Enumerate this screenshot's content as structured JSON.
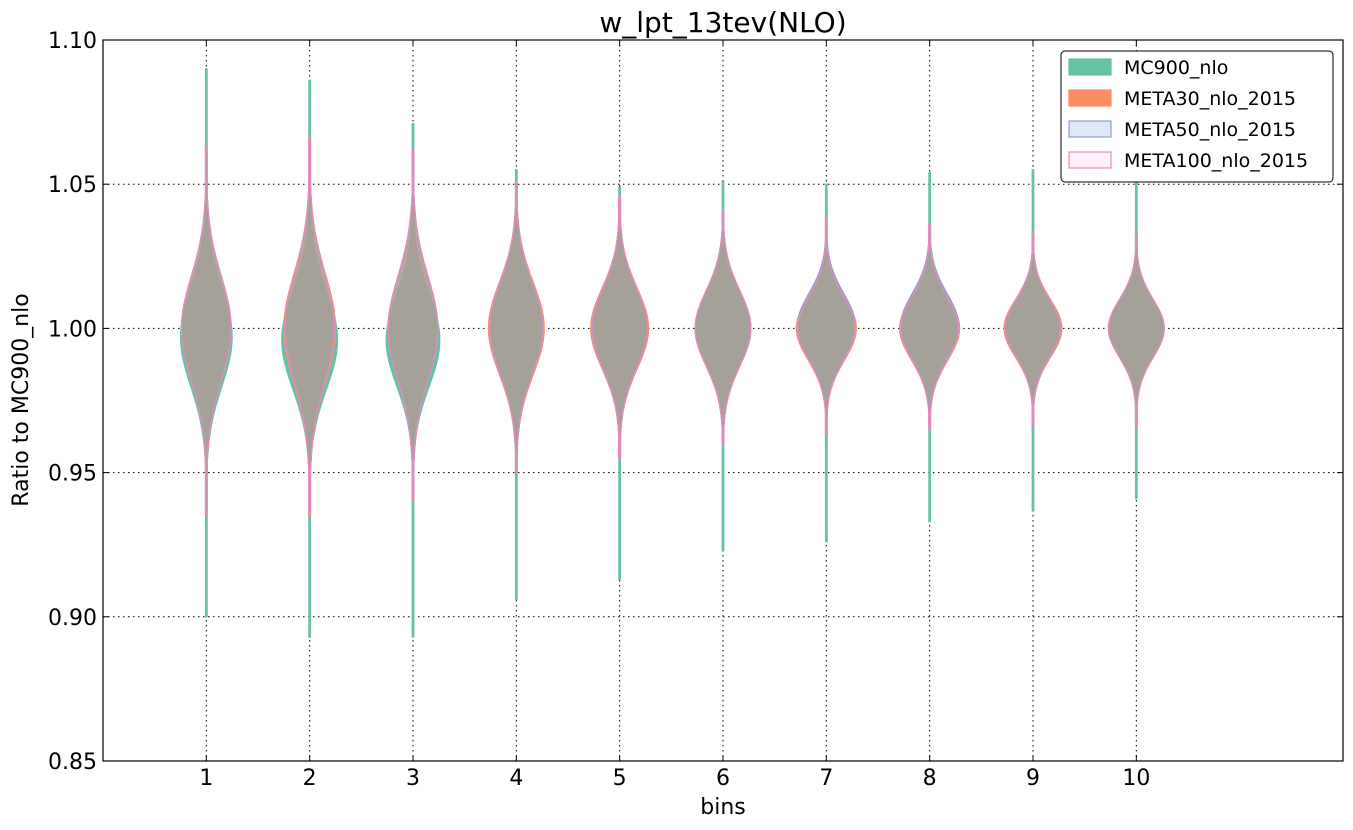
{
  "chart_data": {
    "type": "violin",
    "title": "w_lpt_13tev(NLO)",
    "xlabel": "bins",
    "ylabel": "Ratio to MC900_nlo",
    "ylim": [
      0.85,
      1.1
    ],
    "xlim": [
      0,
      12
    ],
    "yticks": [
      "0.85",
      "0.90",
      "0.95",
      "1.00",
      "1.05",
      "1.10"
    ],
    "categories": [
      "1",
      "2",
      "3",
      "4",
      "5",
      "6",
      "7",
      "8",
      "9",
      "10"
    ],
    "grid": true,
    "legend_position": "top-right",
    "series": [
      {
        "name": "MC900_nlo",
        "fill": "#66c2a5",
        "stroke": "#66c2a5",
        "min": [
          0.9,
          0.893,
          0.893,
          0.906,
          0.913,
          0.923,
          0.926,
          0.933,
          0.937,
          0.941
        ],
        "max": [
          1.09,
          1.086,
          1.071,
          1.055,
          1.049,
          1.051,
          1.05,
          1.054,
          1.055,
          1.053
        ],
        "center": [
          0.997,
          0.996,
          0.996,
          1.0,
          1.0,
          1.0,
          1.001,
          1.001,
          1.0,
          1.0
        ],
        "half_width": [
          0.25,
          0.27,
          0.26,
          0.26,
          0.27,
          0.26,
          0.28,
          0.28,
          0.27,
          0.26
        ],
        "spread": [
          0.017,
          0.017,
          0.016,
          0.016,
          0.014,
          0.013,
          0.011,
          0.011,
          0.01,
          0.01
        ]
      },
      {
        "name": "META30_nlo_2015",
        "fill": "#fc8d62",
        "stroke": "#fc8d62",
        "min": [
          0.935,
          0.935,
          0.94,
          0.95,
          0.955,
          0.96,
          0.963,
          0.965,
          0.966,
          0.966
        ],
        "max": [
          1.063,
          1.066,
          1.062,
          1.051,
          1.045,
          1.041,
          1.038,
          1.036,
          1.033,
          1.032
        ],
        "center": [
          1.0,
          1.0,
          1.0,
          1.0,
          1.0,
          1.0,
          1.0,
          1.0,
          1.0,
          1.0
        ],
        "half_width": [
          0.24,
          0.25,
          0.24,
          0.27,
          0.28,
          0.27,
          0.29,
          0.29,
          0.28,
          0.27
        ],
        "spread": [
          0.018,
          0.019,
          0.018,
          0.016,
          0.014,
          0.013,
          0.011,
          0.011,
          0.01,
          0.01
        ]
      },
      {
        "name": "META50_nlo_2015",
        "fill": "#e0e8f5",
        "stroke": "#8da0cb",
        "min": [
          0.936,
          0.936,
          0.941,
          0.951,
          0.955,
          0.96,
          0.963,
          0.965,
          0.966,
          0.966
        ],
        "max": [
          1.062,
          1.065,
          1.061,
          1.05,
          1.045,
          1.041,
          1.038,
          1.036,
          1.033,
          1.032
        ],
        "center": [
          1.0,
          1.0,
          1.0,
          1.0,
          1.0,
          1.0,
          1.001,
          1.001,
          1.0,
          1.0
        ],
        "half_width": [
          0.24,
          0.24,
          0.24,
          0.26,
          0.27,
          0.27,
          0.28,
          0.28,
          0.27,
          0.27
        ],
        "spread": [
          0.018,
          0.019,
          0.018,
          0.016,
          0.014,
          0.013,
          0.011,
          0.011,
          0.01,
          0.01
        ]
      },
      {
        "name": "META100_nlo_2015",
        "fill": "#fdf0fa",
        "stroke": "#e78ac3",
        "min": [
          0.936,
          0.936,
          0.941,
          0.951,
          0.955,
          0.96,
          0.963,
          0.965,
          0.966,
          0.966
        ],
        "max": [
          1.063,
          1.066,
          1.062,
          1.051,
          1.046,
          1.041,
          1.038,
          1.036,
          1.033,
          1.033
        ],
        "center": [
          1.0,
          1.0,
          1.0,
          1.0,
          1.0,
          1.0,
          1.0,
          1.0,
          1.0,
          1.0
        ],
        "half_width": [
          0.24,
          0.24,
          0.24,
          0.26,
          0.27,
          0.27,
          0.28,
          0.28,
          0.27,
          0.27
        ],
        "spread": [
          0.018,
          0.019,
          0.018,
          0.016,
          0.014,
          0.013,
          0.011,
          0.011,
          0.01,
          0.01
        ]
      }
    ],
    "overlap_fill": "#ad9e97"
  }
}
